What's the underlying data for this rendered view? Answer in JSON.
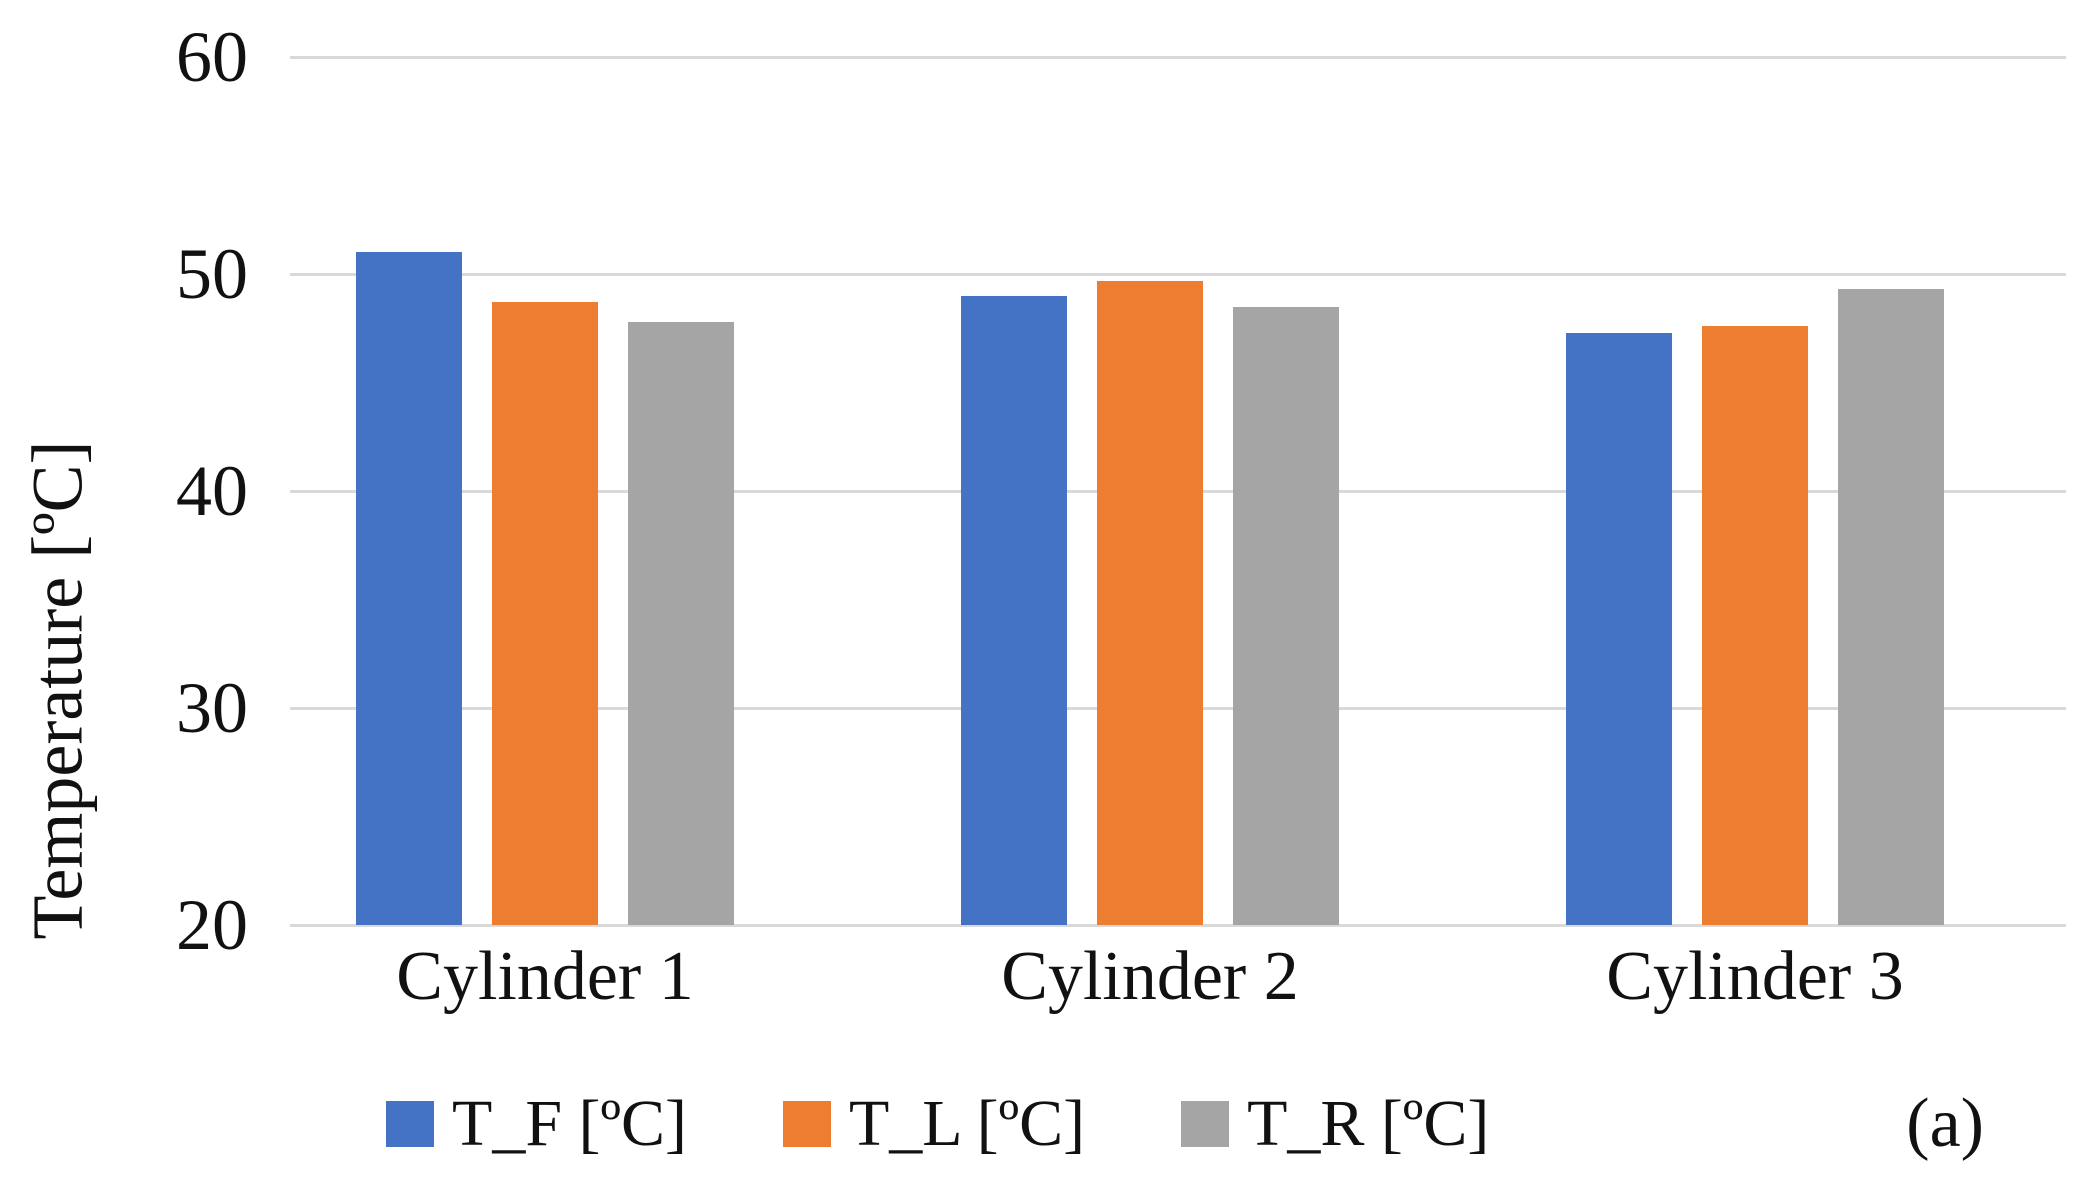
{
  "chart_data": {
    "type": "bar",
    "title": "",
    "xlabel": "",
    "ylabel": "Temperature [ºC]",
    "categories": [
      "Cylinder 1",
      "Cylinder 2",
      "Cylinder 3"
    ],
    "series": [
      {
        "name": "T_F [ºC]",
        "color": "#4472C4",
        "values": [
          51.0,
          49.0,
          47.3
        ]
      },
      {
        "name": "T_L [ºC]",
        "color": "#ED7D31",
        "values": [
          48.7,
          49.7,
          47.6
        ]
      },
      {
        "name": "T_R [ºC]",
        "color": "#A5A5A5",
        "values": [
          47.8,
          48.5,
          49.3
        ]
      }
    ],
    "ylim": [
      20,
      60
    ],
    "yticks": [
      "60",
      "50",
      "40",
      "30",
      "20"
    ],
    "ytick_values": [
      60,
      50,
      40,
      30,
      20
    ],
    "grid": true,
    "gridline_color": "#D9D9D9",
    "background_color": "#FFFFFF",
    "text_color": "#111111",
    "legend_position": "bottom",
    "annotation": "(a)"
  }
}
